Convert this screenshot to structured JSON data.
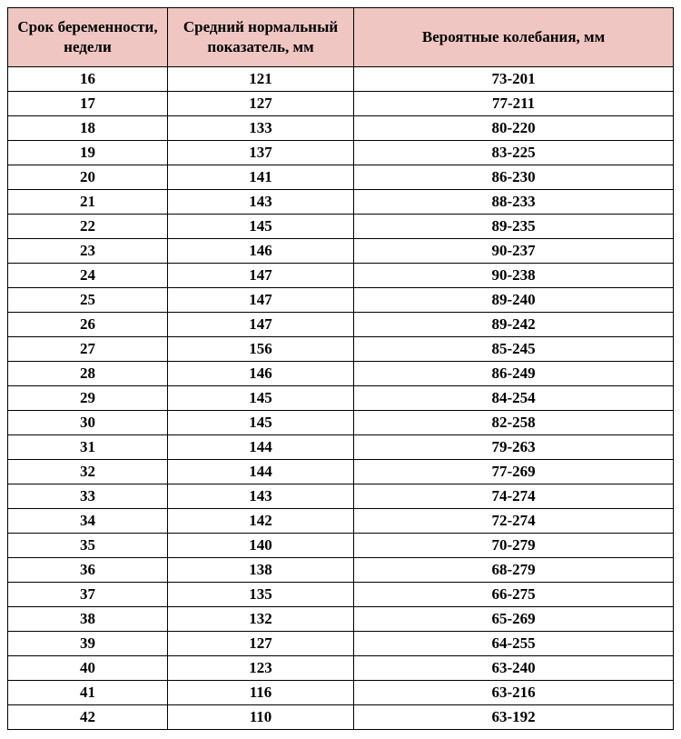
{
  "table": {
    "type": "table",
    "header_bg_color": "#efc6c2",
    "border_color": "#000000",
    "text_color": "#000000",
    "columns": [
      "Срок беременности, недели",
      "Средний нормальный показатель, мм",
      "Вероятные колебания, мм"
    ],
    "rows": [
      [
        "16",
        "121",
        "73-201"
      ],
      [
        "17",
        "127",
        "77-211"
      ],
      [
        "18",
        "133",
        "80-220"
      ],
      [
        "19",
        "137",
        "83-225"
      ],
      [
        "20",
        "141",
        "86-230"
      ],
      [
        "21",
        "143",
        "88-233"
      ],
      [
        "22",
        "145",
        "89-235"
      ],
      [
        "23",
        "146",
        "90-237"
      ],
      [
        "24",
        "147",
        "90-238"
      ],
      [
        "25",
        "147",
        "89-240"
      ],
      [
        "26",
        "147",
        "89-242"
      ],
      [
        "27",
        "156",
        "85-245"
      ],
      [
        "28",
        "146",
        "86-249"
      ],
      [
        "29",
        "145",
        "84-254"
      ],
      [
        "30",
        "145",
        "82-258"
      ],
      [
        "31",
        "144",
        "79-263"
      ],
      [
        "32",
        "144",
        "77-269"
      ],
      [
        "33",
        "143",
        "74-274"
      ],
      [
        "34",
        "142",
        "72-274"
      ],
      [
        "35",
        "140",
        "70-279"
      ],
      [
        "36",
        "138",
        "68-279"
      ],
      [
        "37",
        "135",
        "66-275"
      ],
      [
        "38",
        "132",
        "65-269"
      ],
      [
        "39",
        "127",
        "64-255"
      ],
      [
        "40",
        "123",
        "63-240"
      ],
      [
        "41",
        "116",
        "63-216"
      ],
      [
        "42",
        "110",
        "63-192"
      ]
    ]
  }
}
